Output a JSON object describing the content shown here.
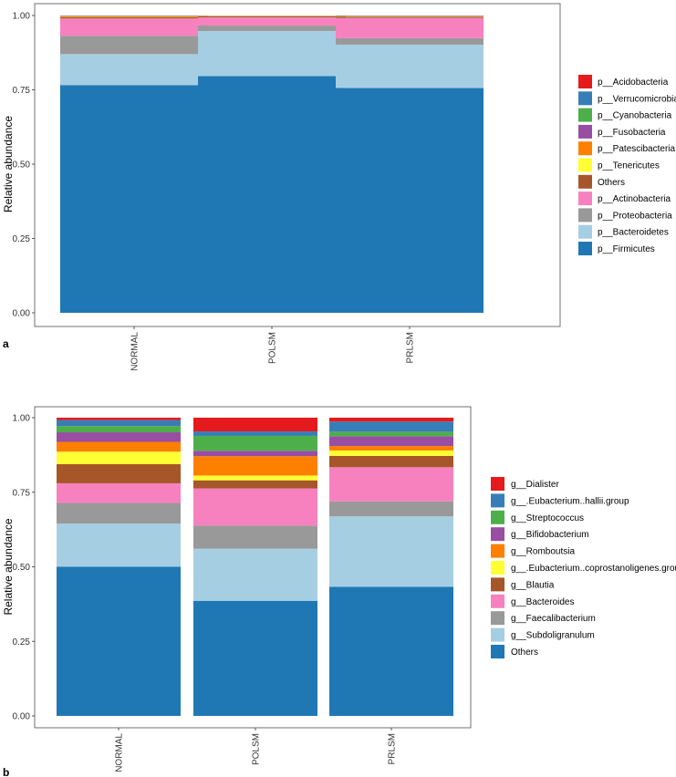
{
  "chart_data": [
    {
      "type": "bar",
      "stacked": true,
      "panel_label": "a",
      "ylabel": "Relative abundance",
      "xlabel": "",
      "ylim": [
        0,
        1
      ],
      "yticks": [
        "0.00",
        "0.25",
        "0.50",
        "0.75",
        "1.00"
      ],
      "categories": [
        "NORMAL",
        "POLSM",
        "PRLSM"
      ],
      "legend_position": "right",
      "series": [
        {
          "name": "p__Firmicutes",
          "color": "#1F78B4",
          "values": [
            0.766,
            0.796,
            0.756
          ]
        },
        {
          "name": "p__Bacteroidetes",
          "color": "#A6CEE3",
          "values": [
            0.104,
            0.152,
            0.146
          ]
        },
        {
          "name": "p__Proteobacteria",
          "color": "#999999",
          "values": [
            0.062,
            0.018,
            0.022
          ]
        },
        {
          "name": "p__Actinobacteria",
          "color": "#F781BF",
          "values": [
            0.058,
            0.028,
            0.068
          ]
        },
        {
          "name": "Others",
          "color": "#A65628",
          "values": [
            0.004,
            0.003,
            0.004
          ]
        },
        {
          "name": "p__Tenericutes",
          "color": "#FFFF33",
          "values": [
            0.001,
            0.001,
            0.001
          ]
        },
        {
          "name": "p__Patescibacteria",
          "color": "#FF7F00",
          "values": [
            0.002,
            0.001,
            0.001
          ]
        },
        {
          "name": "p__Fusobacteria",
          "color": "#984EA3",
          "values": [
            0.001,
            0.0005,
            0.001
          ]
        },
        {
          "name": "p__Cyanobacteria",
          "color": "#4DAF4A",
          "values": [
            0.001,
            0.0005,
            0.0005
          ]
        },
        {
          "name": "p__Verrucomicrobia",
          "color": "#377EB8",
          "values": [
            0.0005,
            0.0,
            0.0005
          ]
        },
        {
          "name": "p__Acidobacteria",
          "color": "#E41A1C",
          "values": [
            0.0005,
            0.0,
            0.0
          ]
        }
      ]
    },
    {
      "type": "bar",
      "stacked": true,
      "panel_label": "b",
      "ylabel": "Relative abundance",
      "xlabel": "",
      "ylim": [
        0,
        1
      ],
      "yticks": [
        "0.00",
        "0.25",
        "0.50",
        "0.75",
        "1.00"
      ],
      "categories": [
        "NORMAL",
        "POLSM",
        "PRLSM"
      ],
      "legend_position": "right",
      "series": [
        {
          "name": "Others",
          "color": "#1F78B4",
          "values": [
            0.5,
            0.386,
            0.433
          ]
        },
        {
          "name": "g__Subdoligranulum",
          "color": "#A6CEE3",
          "values": [
            0.145,
            0.175,
            0.236
          ]
        },
        {
          "name": "g__Faecalibacterium",
          "color": "#999999",
          "values": [
            0.069,
            0.077,
            0.05
          ]
        },
        {
          "name": "g__Bacteroides",
          "color": "#F781BF",
          "values": [
            0.066,
            0.125,
            0.115
          ]
        },
        {
          "name": "g__Blautia",
          "color": "#A65628",
          "values": [
            0.064,
            0.027,
            0.038
          ]
        },
        {
          "name": "g__.Eubacterium..coprostanoligenes.group",
          "color": "#FFFF33",
          "values": [
            0.042,
            0.016,
            0.018
          ]
        },
        {
          "name": "g__Romboutsia",
          "color": "#FF7F00",
          "values": [
            0.033,
            0.065,
            0.015
          ]
        },
        {
          "name": "g__Bifidobacterium",
          "color": "#984EA3",
          "values": [
            0.032,
            0.018,
            0.033
          ]
        },
        {
          "name": "g__Streptococcus",
          "color": "#4DAF4A",
          "values": [
            0.021,
            0.05,
            0.015
          ]
        },
        {
          "name": "g__.Eubacterium..hallii.group",
          "color": "#377EB8",
          "values": [
            0.02,
            0.015,
            0.034
          ]
        },
        {
          "name": "g__Dialister",
          "color": "#E41A1C",
          "values": [
            0.008,
            0.046,
            0.013
          ]
        }
      ]
    }
  ]
}
